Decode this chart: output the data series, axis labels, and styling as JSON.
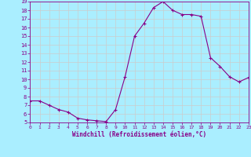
{
  "hours": [
    0,
    1,
    2,
    3,
    4,
    5,
    6,
    7,
    8,
    9,
    10,
    11,
    12,
    13,
    14,
    15,
    16,
    17,
    18,
    19,
    20,
    21,
    22,
    23
  ],
  "values": [
    7.5,
    7.5,
    7.0,
    6.5,
    6.2,
    5.5,
    5.3,
    5.2,
    5.1,
    6.5,
    10.3,
    15.0,
    16.5,
    18.3,
    19.0,
    18.0,
    17.5,
    17.5,
    17.3,
    12.5,
    11.5,
    10.3,
    9.7,
    10.2
  ],
  "line_color": "#880088",
  "marker": "+",
  "marker_size": 3.0,
  "bg_color": "#aaeeff",
  "grid_color": "#cccccc",
  "xlabel": "Windchill (Refroidissement éolien,°C)",
  "tick_color": "#880088",
  "ylim": [
    5,
    19
  ],
  "yticks": [
    5,
    6,
    7,
    8,
    9,
    10,
    11,
    12,
    13,
    14,
    15,
    16,
    17,
    18,
    19
  ],
  "xlim": [
    0,
    23
  ],
  "xticks": [
    0,
    1,
    2,
    3,
    4,
    5,
    6,
    7,
    8,
    9,
    10,
    11,
    12,
    13,
    14,
    15,
    16,
    17,
    18,
    19,
    20,
    21,
    22,
    23
  ]
}
